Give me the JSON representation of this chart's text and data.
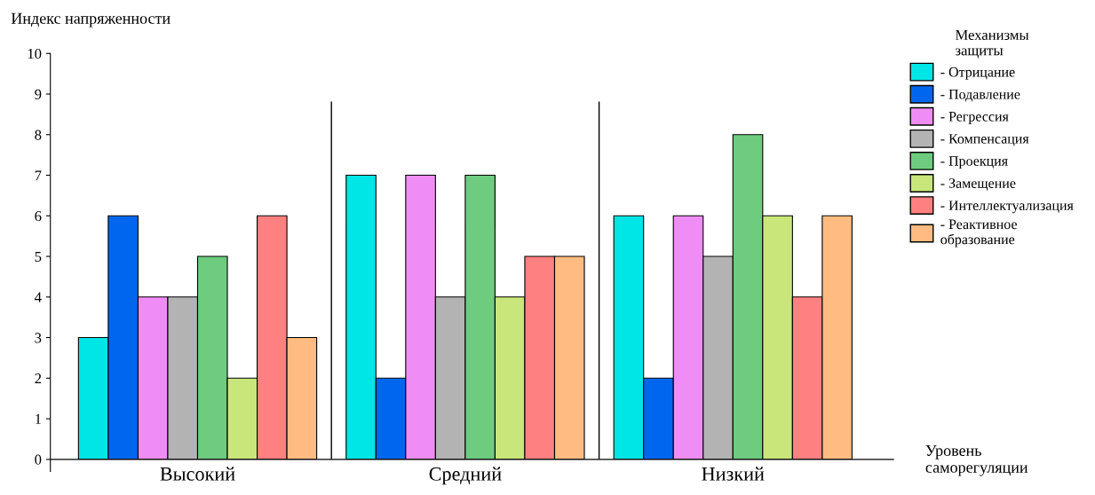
{
  "chart_data": {
    "type": "bar",
    "categories": [
      "Высокий",
      "Средний",
      "Низкий"
    ],
    "ylabel": "Индекс напряженности",
    "xlabel": "Уровень саморегуляции",
    "legend_title": "Механизмы защиты",
    "ylim": [
      0,
      10
    ],
    "yticks": [
      0,
      1,
      2,
      3,
      4,
      5,
      6,
      7,
      8,
      9,
      10
    ],
    "grid": false,
    "legend": "right",
    "series": [
      {
        "name": "- Отрицание",
        "color": "#00e5e5",
        "values": [
          3,
          7,
          6
        ]
      },
      {
        "name": "- Подавление",
        "color": "#0066ee",
        "values": [
          6,
          2,
          2
        ]
      },
      {
        "name": "- Регрессия",
        "color": "#f08cf5",
        "values": [
          4,
          7,
          6
        ]
      },
      {
        "name": "- Компенсация",
        "color": "#b3b3b3",
        "values": [
          4,
          4,
          5
        ]
      },
      {
        "name": "- Проекция",
        "color": "#6dcc7e",
        "values": [
          5,
          7,
          8
        ]
      },
      {
        "name": "- Замещение",
        "color": "#c8e67a",
        "values": [
          2,
          4,
          6
        ]
      },
      {
        "name": "- Интеллектуализация",
        "color": "#ff8080",
        "values": [
          6,
          5,
          4
        ]
      },
      {
        "name": "- Реактивное\nобразование",
        "color": "#ffbb80",
        "values": [
          3,
          5,
          6
        ]
      }
    ]
  }
}
